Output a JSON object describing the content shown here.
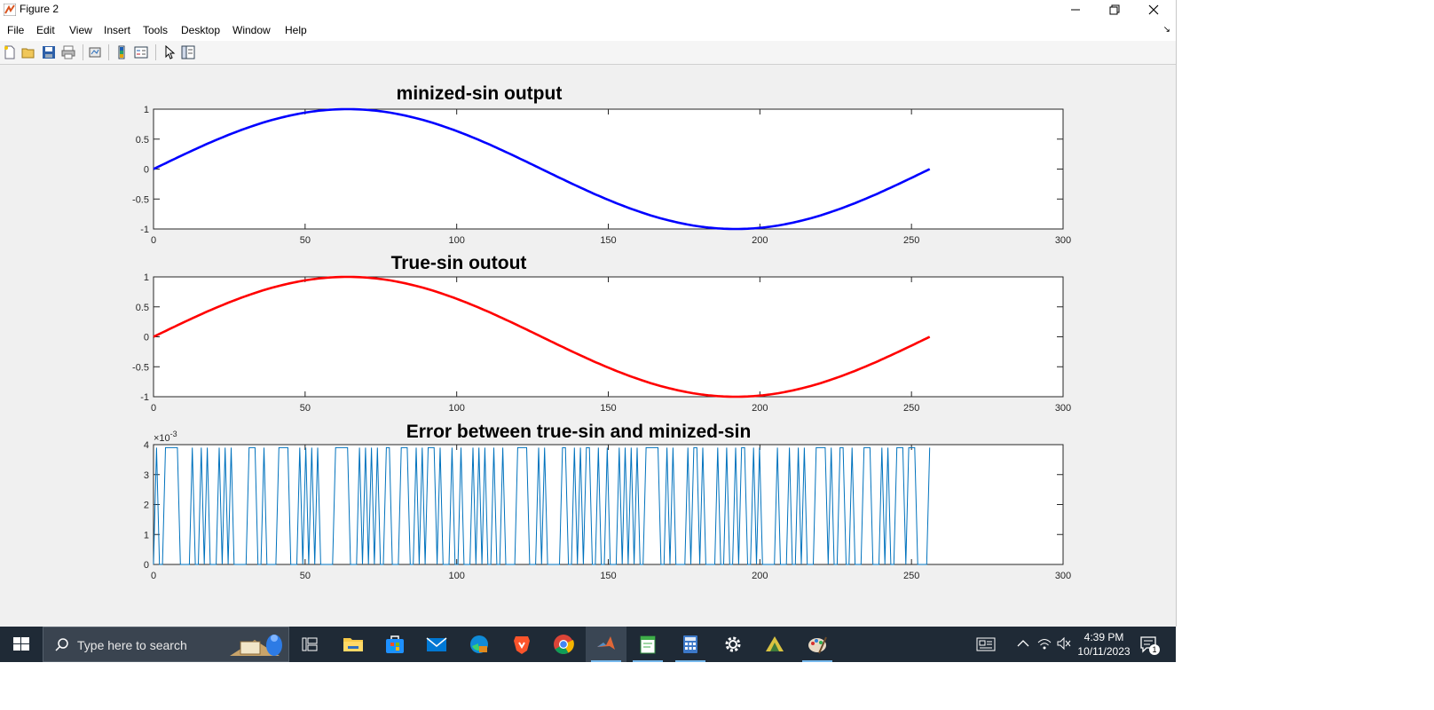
{
  "window": {
    "title": "Figure 2"
  },
  "menu": [
    "File",
    "Edit",
    "View",
    "Insert",
    "Tools",
    "Desktop",
    "Window",
    "Help"
  ],
  "toolbar_icons": [
    "new-figure-icon",
    "open-file-icon",
    "save-icon",
    "print-icon",
    "link-plot-icon",
    "colorbar-icon",
    "legend-icon",
    "pointer-icon",
    "property-inspector-icon"
  ],
  "chart_data": [
    {
      "type": "line",
      "title": "minized-sin output",
      "xlim": [
        0,
        300
      ],
      "ylim": [
        -1,
        1
      ],
      "xticks": [
        "0",
        "50",
        "100",
        "150",
        "200",
        "250",
        "300"
      ],
      "yticks": [
        "-1",
        "-0.5",
        "0",
        "0.5",
        "1"
      ],
      "series": [
        {
          "color": "#0000ff",
          "function": "sin(2*pi*x/256)",
          "x_range": [
            0,
            256
          ]
        }
      ]
    },
    {
      "type": "line",
      "title": "True-sin outout",
      "xlim": [
        0,
        300
      ],
      "ylim": [
        -1,
        1
      ],
      "xticks": [
        "0",
        "50",
        "100",
        "150",
        "200",
        "250",
        "300"
      ],
      "yticks": [
        "-1",
        "-0.5",
        "0",
        "0.5",
        "1"
      ],
      "series": [
        {
          "color": "#ff0000",
          "function": "sin(2*pi*x/256)",
          "x_range": [
            0,
            256
          ]
        }
      ]
    },
    {
      "type": "line",
      "title": "Error between true-sin and minized-sin",
      "xlim": [
        0,
        300
      ],
      "ylim": [
        0,
        4
      ],
      "xticks": [
        "0",
        "50",
        "100",
        "150",
        "200",
        "250",
        "300"
      ],
      "yticks": [
        "0",
        "1",
        "2",
        "3",
        "4"
      ],
      "exponent_label": "×10",
      "exponent_power": "-3",
      "series": [
        {
          "color": "#0072bd",
          "x_range": [
            0,
            256
          ],
          "levels": [
            0,
            3.9
          ],
          "values": [
            0,
            3.9,
            0,
            0,
            3.9,
            3.9,
            3.9,
            3.9,
            3.9,
            0,
            0,
            0,
            0,
            3.9,
            0,
            0,
            3.9,
            0,
            3.9,
            0,
            0,
            0,
            3.9,
            0,
            3.9,
            0,
            3.9,
            0,
            0,
            0,
            0,
            0,
            3.9,
            3.9,
            3.9,
            0,
            0,
            3.9,
            0,
            0,
            0,
            0,
            3.9,
            3.9,
            3.9,
            3.9,
            0,
            0,
            0,
            3.9,
            0,
            3.9,
            0,
            3.9,
            0,
            3.9,
            0,
            0,
            0,
            0,
            0,
            3.9,
            3.9,
            3.9,
            3.9,
            3.9,
            0,
            0,
            0,
            3.9,
            0,
            3.9,
            0,
            3.9,
            0,
            3.9,
            0,
            0,
            3.9,
            3.9,
            0,
            0,
            0,
            3.9,
            3.9,
            3.9,
            0,
            0,
            3.9,
            0,
            3.9,
            0,
            3.9,
            3.9,
            3.9,
            0,
            3.9,
            0,
            0,
            0,
            3.9,
            0,
            0,
            3.9,
            0,
            0,
            0,
            3.9,
            0,
            3.9,
            0,
            3.9,
            0,
            0,
            3.9,
            0,
            0,
            3.9,
            0,
            0,
            0,
            0,
            3.9,
            3.9,
            3.9,
            3.9,
            0,
            0,
            0,
            3.9,
            0,
            3.9,
            0,
            0,
            0,
            0,
            0,
            3.9,
            3.9,
            0,
            0,
            3.9,
            0,
            3.9,
            0,
            3.9,
            3.9,
            0,
            0,
            3.9,
            0,
            0,
            3.9,
            0,
            0,
            0,
            3.9,
            0,
            3.9,
            0,
            3.9,
            0,
            3.9,
            0,
            0,
            3.9,
            3.9,
            3.9,
            3.9,
            3.9,
            0,
            0,
            3.9,
            0,
            3.9,
            0,
            0,
            0,
            0,
            3.9,
            0,
            3.9,
            3.9,
            0,
            3.9,
            0,
            0,
            0,
            0,
            3.9,
            0,
            0,
            3.9,
            0,
            0,
            3.9,
            0,
            3.9,
            3.9,
            0,
            0,
            3.9,
            0,
            3.9,
            0,
            0,
            0,
            0,
            0,
            3.9,
            0,
            0,
            0,
            3.9,
            0,
            0,
            3.9,
            0,
            3.9,
            0,
            0,
            0,
            3.9,
            3.9,
            3.9,
            3.9,
            0,
            3.9,
            0,
            0,
            3.9,
            3.9,
            0,
            0,
            3.9,
            0,
            0,
            0,
            3.9,
            3.9,
            3.9,
            0,
            0,
            0,
            3.9,
            0,
            3.9,
            0,
            0,
            3.9,
            3.9,
            3.9,
            0,
            3.9,
            3.9,
            3.9,
            0,
            0,
            0,
            0,
            3.9
          ]
        }
      ]
    }
  ],
  "taskbar": {
    "search_placeholder": "Type here to search",
    "apps": [
      "task-view-icon",
      "file-explorer-icon",
      "store-icon",
      "mail-icon",
      "edge-icon",
      "brave-icon",
      "chrome-icon",
      "matlab-icon",
      "notepad-icon",
      "calculator-icon",
      "settings-icon",
      "app-icon",
      "paint-icon"
    ],
    "time": "4:39 PM",
    "date": "10/11/2023",
    "notification_count": "1"
  }
}
